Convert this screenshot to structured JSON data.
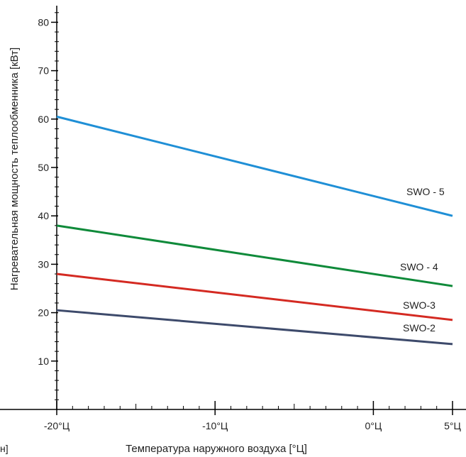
{
  "chart_data": {
    "type": "line",
    "title": "",
    "xlabel": "Температура наружного воздуха [°Ц]",
    "ylabel": "Нагревательная мощность теплообменника [кВт]",
    "xlim": [
      -20,
      5
    ],
    "ylim": [
      0,
      80
    ],
    "x_ticks": [
      {
        "value": -20,
        "label": "-20°Ц"
      },
      {
        "value": -10,
        "label": "-10°Ц"
      },
      {
        "value": 0,
        "label": "0°Ц"
      },
      {
        "value": 5,
        "label": "5°Ц"
      }
    ],
    "y_ticks": [
      {
        "value": 10,
        "label": "10"
      },
      {
        "value": 20,
        "label": "20"
      },
      {
        "value": 30,
        "label": "30"
      },
      {
        "value": 40,
        "label": "40"
      },
      {
        "value": 50,
        "label": "50"
      },
      {
        "value": 60,
        "label": "60"
      },
      {
        "value": 70,
        "label": "70"
      },
      {
        "value": 80,
        "label": "80"
      }
    ],
    "grid": false,
    "series": [
      {
        "name": "SWO - 5",
        "color": "#1f8fd6",
        "x": [
          -20,
          5
        ],
        "y": [
          60.5,
          40
        ]
      },
      {
        "name": "SWO - 4",
        "color": "#0f8a3a",
        "x": [
          -20,
          5
        ],
        "y": [
          38,
          25.5
        ]
      },
      {
        "name": "SWO-3",
        "color": "#d42a22",
        "x": [
          -20,
          5
        ],
        "y": [
          28,
          18.5
        ]
      },
      {
        "name": "SWO-2",
        "color": "#3d4a6b",
        "x": [
          -20,
          5
        ],
        "y": [
          20.5,
          13.5
        ]
      }
    ]
  },
  "cut_text": "н]"
}
